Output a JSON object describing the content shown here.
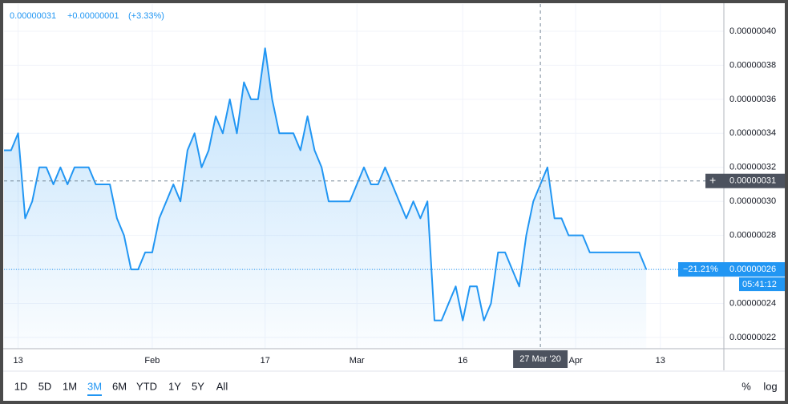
{
  "chart_data": {
    "type": "area",
    "header": {
      "price": "0.00000031",
      "change": "+0.00000001",
      "change_pct": "(+3.33%)"
    },
    "x": [
      "2020-01-11",
      "2020-01-12",
      "2020-01-13",
      "2020-01-14",
      "2020-01-15",
      "2020-01-16",
      "2020-01-17",
      "2020-01-18",
      "2020-01-19",
      "2020-01-20",
      "2020-01-21",
      "2020-01-22",
      "2020-01-23",
      "2020-01-24",
      "2020-01-25",
      "2020-01-26",
      "2020-01-27",
      "2020-01-28",
      "2020-01-29",
      "2020-01-30",
      "2020-01-31",
      "2020-02-01",
      "2020-02-02",
      "2020-02-03",
      "2020-02-04",
      "2020-02-05",
      "2020-02-06",
      "2020-02-07",
      "2020-02-08",
      "2020-02-09",
      "2020-02-10",
      "2020-02-11",
      "2020-02-12",
      "2020-02-13",
      "2020-02-14",
      "2020-02-15",
      "2020-02-16",
      "2020-02-17",
      "2020-02-18",
      "2020-02-19",
      "2020-02-20",
      "2020-02-21",
      "2020-02-22",
      "2020-02-23",
      "2020-02-24",
      "2020-02-25",
      "2020-02-26",
      "2020-02-27",
      "2020-02-28",
      "2020-02-29",
      "2020-03-01",
      "2020-03-02",
      "2020-03-03",
      "2020-03-04",
      "2020-03-05",
      "2020-03-06",
      "2020-03-07",
      "2020-03-08",
      "2020-03-09",
      "2020-03-10",
      "2020-03-11",
      "2020-03-12",
      "2020-03-13",
      "2020-03-14",
      "2020-03-15",
      "2020-03-16",
      "2020-03-17",
      "2020-03-18",
      "2020-03-19",
      "2020-03-20",
      "2020-03-21",
      "2020-03-22",
      "2020-03-23",
      "2020-03-24",
      "2020-03-25",
      "2020-03-26",
      "2020-03-27",
      "2020-03-28",
      "2020-03-29",
      "2020-03-30",
      "2020-03-31",
      "2020-04-01",
      "2020-04-02",
      "2020-04-03",
      "2020-04-04",
      "2020-04-05",
      "2020-04-06",
      "2020-04-07",
      "2020-04-08",
      "2020-04-09",
      "2020-04-10",
      "2020-04-11"
    ],
    "series": [
      {
        "color": "#2196f3",
        "values": [
          3.3e-07,
          3.3e-07,
          3.4e-07,
          2.9e-07,
          3e-07,
          3.2e-07,
          3.2e-07,
          3.1e-07,
          3.2e-07,
          3.1e-07,
          3.2e-07,
          3.2e-07,
          3.2e-07,
          3.1e-07,
          3.1e-07,
          3.1e-07,
          2.9e-07,
          2.8e-07,
          2.6e-07,
          2.6e-07,
          2.7e-07,
          2.7e-07,
          2.9e-07,
          3e-07,
          3.1e-07,
          3e-07,
          3.3e-07,
          3.4e-07,
          3.2e-07,
          3.3e-07,
          3.5e-07,
          3.4e-07,
          3.6e-07,
          3.4e-07,
          3.7e-07,
          3.6e-07,
          3.6e-07,
          3.9e-07,
          3.6e-07,
          3.4e-07,
          3.4e-07,
          3.4e-07,
          3.3e-07,
          3.5e-07,
          3.3e-07,
          3.2e-07,
          3e-07,
          3e-07,
          3e-07,
          3e-07,
          3.1e-07,
          3.2e-07,
          3.1e-07,
          3.1e-07,
          3.2e-07,
          3.1e-07,
          3e-07,
          2.9e-07,
          3e-07,
          2.9e-07,
          3e-07,
          2.3e-07,
          2.3e-07,
          2.4e-07,
          2.5e-07,
          2.3e-07,
          2.5e-07,
          2.5e-07,
          2.3e-07,
          2.4e-07,
          2.7e-07,
          2.7e-07,
          2.6e-07,
          2.5e-07,
          2.8e-07,
          3e-07,
          3.1e-07,
          3.2e-07,
          2.9e-07,
          2.9e-07,
          2.8e-07,
          2.8e-07,
          2.8e-07,
          2.7e-07,
          2.7e-07,
          2.7e-07,
          2.7e-07,
          2.7e-07,
          2.7e-07,
          2.7e-07,
          2.7e-07,
          2.6e-07
        ]
      }
    ],
    "xlim": [
      "2020-01-11",
      "2020-04-22"
    ],
    "xticks": [
      {
        "value": "2020-01-13",
        "label": "13"
      },
      {
        "value": "2020-02-01",
        "label": "Feb"
      },
      {
        "value": "2020-02-17",
        "label": "17"
      },
      {
        "value": "2020-03-01",
        "label": "Mar"
      },
      {
        "value": "2020-03-16",
        "label": "16"
      },
      {
        "value": "2020-04-01",
        "label": "Apr"
      },
      {
        "value": "2020-04-13",
        "label": "13"
      }
    ],
    "ylim": [
      2.134e-07,
      4.16e-07
    ],
    "yticks": [
      {
        "value": 2.2e-07,
        "label": "0.00000022"
      },
      {
        "value": 2.4e-07,
        "label": "0.00000024"
      },
      {
        "value": 2.6e-07,
        "label": "0.00000026"
      },
      {
        "value": 2.8e-07,
        "label": "0.00000028"
      },
      {
        "value": 3e-07,
        "label": "0.00000030"
      },
      {
        "value": 3.2e-07,
        "label": "0.00000032"
      },
      {
        "value": 3.4e-07,
        "label": "0.00000034"
      },
      {
        "value": 3.6e-07,
        "label": "0.00000036"
      },
      {
        "value": 3.8e-07,
        "label": "0.00000038"
      },
      {
        "value": 4e-07,
        "label": "0.00000040"
      }
    ],
    "grid": true,
    "crosshair": {
      "x": "2020-03-27",
      "y": 3.12e-07,
      "x_label": "27 Mar '20",
      "y_label": "0.00000031"
    },
    "last_price": {
      "value": 2.6e-07,
      "change_label": "−21.21%",
      "price_label": "0.00000026",
      "countdown": "05:41:12"
    },
    "toolbar": {
      "ranges": [
        "1D",
        "5D",
        "1M",
        "3M",
        "6M",
        "YTD",
        "1Y",
        "5Y",
        "All"
      ],
      "active": "3M",
      "options": [
        "%",
        "log"
      ]
    }
  }
}
